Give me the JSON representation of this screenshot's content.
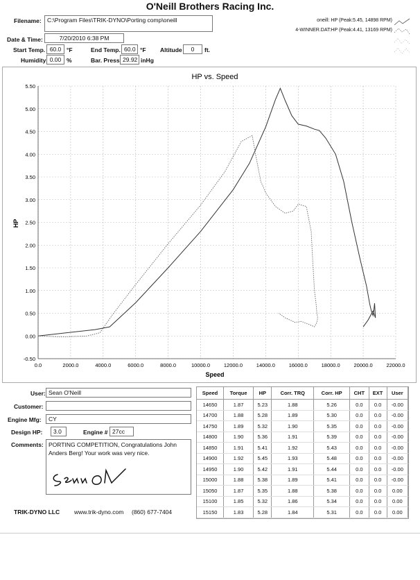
{
  "header": {
    "title": "O'Neill Brothers Racing Inc.",
    "filename_label": "Filename:",
    "filename": "C:\\Program Files\\TRIK-DYNO\\Porting comp\\oneill",
    "date_label": "Date & Time:",
    "date": "7/20/2010 6:38 PM",
    "start_temp_label": "Start Temp.",
    "start_temp": "60.0",
    "start_temp_unit": "°F",
    "end_temp_label": "End Temp.",
    "end_temp": "60.0",
    "end_temp_unit": "°F",
    "altitude_label": "Altitude",
    "altitude": "0",
    "altitude_unit": "ft.",
    "humidity_label": "Humidity",
    "humidity": "0.00",
    "humidity_unit": "%",
    "bar_press_label": "Bar. Press.",
    "bar_press": "29.92",
    "bar_press_unit": "inHg"
  },
  "legend": {
    "item1": "oneill: HP (Peak:5.45, 14898 RPM)",
    "item2": "4-WINNER.DAT:HP (Peak:4.41, 13169 RPM)"
  },
  "chart_data": {
    "type": "line",
    "title": "HP vs. Speed",
    "xlabel": "Speed",
    "ylabel": "HP",
    "xlim": [
      0,
      22000
    ],
    "ylim": [
      -0.5,
      5.5
    ],
    "x_ticks": [
      "0.0",
      "2000.0",
      "4000.0",
      "6000.0",
      "8000.0",
      "10000.0",
      "12000.0",
      "14000.0",
      "16000.0",
      "18000.0",
      "20000.0",
      "22000.0"
    ],
    "y_ticks": [
      "-0.50",
      "0.00",
      "0.50",
      "1.00",
      "1.50",
      "2.00",
      "2.50",
      "3.00",
      "3.50",
      "4.00",
      "4.50",
      "5.00",
      "5.50"
    ],
    "grid": true,
    "legend_position": "top-right",
    "series": [
      {
        "name": "oneill: HP (Peak:5.45, 14898 RPM)",
        "style": "solid",
        "x": [
          0,
          2000,
          3500,
          4400,
          6000,
          8000,
          10000,
          12000,
          13000,
          14000,
          14600,
          14898,
          15200,
          15600,
          16000,
          16500,
          17000,
          17300,
          17700,
          18300,
          18800,
          19300,
          19800,
          20200,
          20400,
          20500,
          20600,
          20650,
          20700,
          20750,
          20600,
          20300,
          20000
        ],
        "y": [
          0,
          0.08,
          0.14,
          0.2,
          0.73,
          1.5,
          2.3,
          3.22,
          3.8,
          4.6,
          5.2,
          5.45,
          5.18,
          4.85,
          4.66,
          4.62,
          4.55,
          4.52,
          4.35,
          4.0,
          3.4,
          2.5,
          1.7,
          1.1,
          0.7,
          0.55,
          0.45,
          0.55,
          0.72,
          0.4,
          0.55,
          0.35,
          0.2
        ]
      },
      {
        "name": "4-WINNER.DAT:HP (Peak:4.41, 13169 RPM)",
        "style": "dotted",
        "x": [
          0,
          1500,
          3000,
          3800,
          4600,
          6000,
          8000,
          10000,
          11500,
          12500,
          13169,
          13400,
          13700,
          14000,
          14600,
          15200,
          15700,
          16000,
          16500,
          16800,
          16900,
          17000,
          17100,
          17150,
          17200,
          17150,
          17000,
          16700,
          16200,
          15800,
          15200,
          14800
        ],
        "y": [
          0,
          -0.02,
          0,
          0.07,
          0.48,
          1.13,
          2.03,
          2.88,
          3.62,
          4.28,
          4.41,
          3.95,
          3.4,
          3.15,
          2.85,
          2.7,
          2.75,
          2.9,
          2.85,
          2.3,
          1.6,
          1.0,
          0.7,
          0.5,
          0.4,
          0.3,
          0.2,
          0.25,
          0.32,
          0.3,
          0.4,
          0.5
        ]
      }
    ]
  },
  "info": {
    "user_label": "User:",
    "user": "Sean O'Neill",
    "customer_label": "Customer:",
    "customer": "",
    "engine_mfg_label": "Engine Mfg:",
    "engine_mfg": "CY",
    "design_hp_label": "Design HP:",
    "design_hp": "3.0",
    "engine_num_label": "Engine #",
    "engine_num": "27cc",
    "comments_label": "Comments:",
    "comments": "PORTING COMPETITION, Congratulations John Anders Berg! Your work was very nice.",
    "company": "TRIK-DYNO LLC",
    "website": "www.trik-dyno.com",
    "phone": "(860) 677-7404"
  },
  "table": {
    "columns": [
      "Speed",
      "Torque",
      "HP",
      "Corr. TRQ",
      "Corr. HP",
      "CHT",
      "EXT",
      "User"
    ],
    "rows": [
      [
        "14650",
        "1.87",
        "5.23",
        "1.88",
        "5.26",
        "0.0",
        "0.0",
        "-0.00"
      ],
      [
        "14700",
        "1.88",
        "5.28",
        "1.89",
        "5.30",
        "0.0",
        "0.0",
        "-0.00"
      ],
      [
        "14750",
        "1.89",
        "5.32",
        "1.90",
        "5.35",
        "0.0",
        "0.0",
        "-0.00"
      ],
      [
        "14800",
        "1.90",
        "5.36",
        "1.91",
        "5.39",
        "0.0",
        "0.0",
        "-0.00"
      ],
      [
        "14850",
        "1.91",
        "5.41",
        "1.92",
        "5.43",
        "0.0",
        "0.0",
        "-0.00"
      ],
      [
        "14900",
        "1.92",
        "5.45",
        "1.93",
        "5.48",
        "0.0",
        "0.0",
        "-0.00"
      ],
      [
        "14950",
        "1.90",
        "5.42",
        "1.91",
        "5.44",
        "0.0",
        "0.0",
        "-0.00"
      ],
      [
        "15000",
        "1.88",
        "5.38",
        "1.89",
        "5.41",
        "0.0",
        "0.0",
        "-0.00"
      ],
      [
        "15050",
        "1.87",
        "5.35",
        "1.88",
        "5.38",
        "0.0",
        "0.0",
        "0.00"
      ],
      [
        "15100",
        "1.85",
        "5.32",
        "1.86",
        "5.34",
        "0.0",
        "0.0",
        "0.00"
      ],
      [
        "15150",
        "1.83",
        "5.28",
        "1.84",
        "5.31",
        "0.0",
        "0.0",
        "0.00"
      ]
    ]
  }
}
